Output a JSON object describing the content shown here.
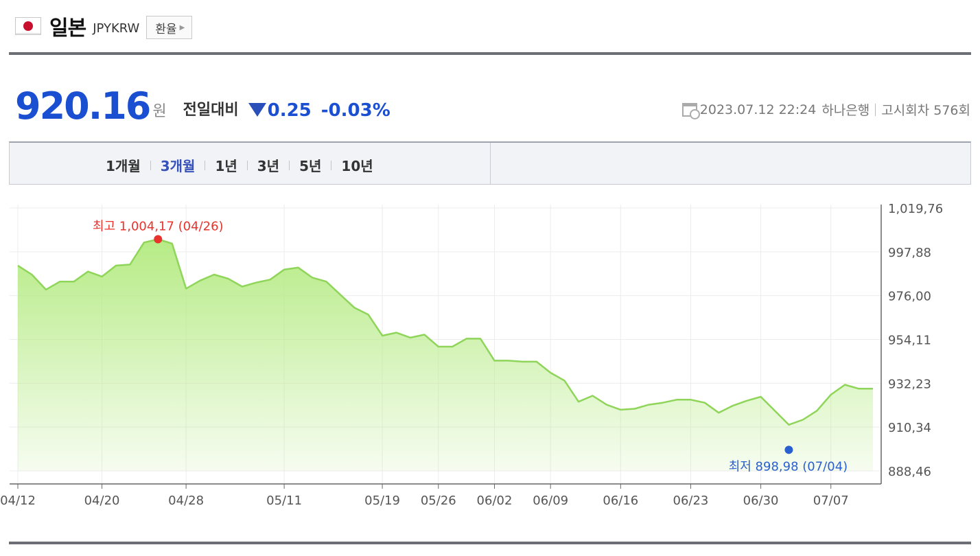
{
  "header": {
    "country": "일본",
    "code": "JPYKRW",
    "exchange_button": "환율",
    "flag_icon": "japan-flag-icon"
  },
  "price": {
    "value": "920.16",
    "unit": "원",
    "prev_label": "전일대비",
    "change": "0.25",
    "change_pct": "-0.03%",
    "direction_icon": "down-triangle-icon",
    "color": "#1b4fd1"
  },
  "meta": {
    "datetime": "2023.07.12 22:24",
    "bank": "하나은행",
    "notice": "고시회차 576회"
  },
  "tabs": [
    {
      "label": "1개월",
      "active": false
    },
    {
      "label": "3개월",
      "active": true
    },
    {
      "label": "1년",
      "active": false
    },
    {
      "label": "3년",
      "active": false
    },
    {
      "label": "5년",
      "active": false
    },
    {
      "label": "10년",
      "active": false
    }
  ],
  "chart_data": {
    "type": "area",
    "line_color": "#8fd55a",
    "fill_color": "#b6eb85",
    "high_color": "#e8322b",
    "low_color": "#2a5fd0",
    "ylim": [
      888.46,
      1019.76
    ],
    "y_ticks": [
      "1,019,76",
      "997,88",
      "976,00",
      "954,11",
      "932,23",
      "910,34",
      "888,46"
    ],
    "y_tick_values": [
      1019.76,
      997.88,
      976.0,
      954.11,
      932.23,
      910.34,
      888.46
    ],
    "x_ticks": [
      "04/12",
      "04/20",
      "04/28",
      "05/11",
      "05/19",
      "05/26",
      "06/02",
      "06/09",
      "06/16",
      "06/23",
      "06/30",
      "07/07"
    ],
    "x_tick_index": [
      0,
      6,
      12,
      19,
      26,
      30,
      34,
      38,
      43,
      48,
      53,
      58
    ],
    "values": [
      991.0,
      986.5,
      979.0,
      983.0,
      983.0,
      988.0,
      985.5,
      991.0,
      991.5,
      1002.5,
      1004.17,
      1002.0,
      979.5,
      983.5,
      986.5,
      984.5,
      980.5,
      982.5,
      984.0,
      989.0,
      990.0,
      985.0,
      983.0,
      976.5,
      970.0,
      966.5,
      956.0,
      957.5,
      955.0,
      956.5,
      950.5,
      950.5,
      954.5,
      954.5,
      943.5,
      943.5,
      943.0,
      943.0,
      937.5,
      933.5,
      923.0,
      926.0,
      921.5,
      919.0,
      919.5,
      921.5,
      922.5,
      924.0,
      924.0,
      922.5,
      917.5,
      921.0,
      923.5,
      925.5,
      918.5,
      911.5,
      914.0,
      918.5,
      926.5,
      931.5,
      929.5,
      929.5
    ],
    "high": {
      "label": "최고 1,004,17 (04/26)",
      "index": 10,
      "value": 1004.17
    },
    "low": {
      "label": "최저 898,98 (07/04)",
      "index": 55,
      "value": 898.98
    }
  }
}
